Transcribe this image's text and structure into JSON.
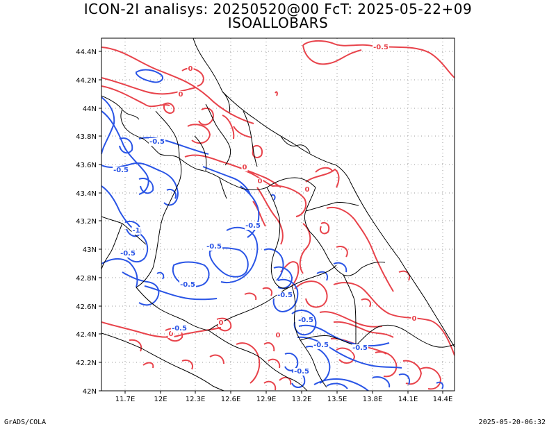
{
  "title_line1": "ICON-2I analisys: 20250520@00 FcT: 2025-05-22+09",
  "title_line2": "ISOALLOBARS",
  "footer_left": "GrADS/COLA",
  "footer_right": "2025-05-20-06:32",
  "x_ticks": [
    "11.7E",
    "12E",
    "12.3E",
    "12.6E",
    "12.9E",
    "13.2E",
    "13.5E",
    "13.8E",
    "14.1E",
    "14.4E"
  ],
  "y_ticks": [
    "42N",
    "42.2N",
    "42.4N",
    "42.6N",
    "42.8N",
    "43N",
    "43.2N",
    "43.4N",
    "43.6N",
    "43.8N",
    "44N",
    "44.2N",
    "44.4N"
  ],
  "colors": {
    "positive_contour": "#e8434b",
    "negative_contour": "#2a55e6",
    "border": "#000000",
    "grid": "#9a9a9a"
  },
  "contour_labels": {
    "red": [
      "-0.5",
      "0",
      "0",
      "0",
      "0",
      "0",
      "0",
      "0",
      "0",
      "0"
    ],
    "blue": [
      "-0.5",
      "-0.5",
      "-1",
      "-0.5",
      "-0.5",
      "-0.5",
      "-0.5",
      "-0.5",
      "-0.5",
      "-0.5",
      "-0.5",
      "-0.5",
      "-0.5"
    ]
  }
}
